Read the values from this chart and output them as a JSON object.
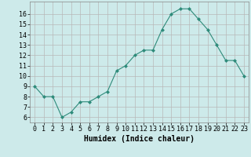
{
  "x": [
    0,
    1,
    2,
    3,
    4,
    5,
    6,
    7,
    8,
    9,
    10,
    11,
    12,
    13,
    14,
    15,
    16,
    17,
    18,
    19,
    20,
    21,
    22,
    23
  ],
  "y": [
    9,
    8,
    8,
    6,
    6.5,
    7.5,
    7.5,
    8,
    8.5,
    10.5,
    11,
    12,
    12.5,
    12.5,
    14.5,
    16,
    16.5,
    16.5,
    15.5,
    14.5,
    13,
    11.5,
    11.5,
    10
  ],
  "line_color": "#2e8b7a",
  "marker": "D",
  "marker_size": 2.0,
  "bg_color": "#cdeaea",
  "grid_color": "#b8b8b8",
  "xlabel": "Humidex (Indice chaleur)",
  "xlim": [
    -0.5,
    23.5
  ],
  "ylim": [
    5.5,
    17.2
  ],
  "yticks": [
    6,
    7,
    8,
    9,
    10,
    11,
    12,
    13,
    14,
    15,
    16
  ],
  "xticks": [
    0,
    1,
    2,
    3,
    4,
    5,
    6,
    7,
    8,
    9,
    10,
    11,
    12,
    13,
    14,
    15,
    16,
    17,
    18,
    19,
    20,
    21,
    22,
    23
  ],
  "xtick_labels": [
    "0",
    "1",
    "2",
    "3",
    "4",
    "5",
    "6",
    "7",
    "8",
    "9",
    "10",
    "11",
    "12",
    "13",
    "14",
    "15",
    "16",
    "17",
    "18",
    "19",
    "20",
    "21",
    "22",
    "23"
  ],
  "label_fontsize": 7,
  "tick_fontsize": 6
}
